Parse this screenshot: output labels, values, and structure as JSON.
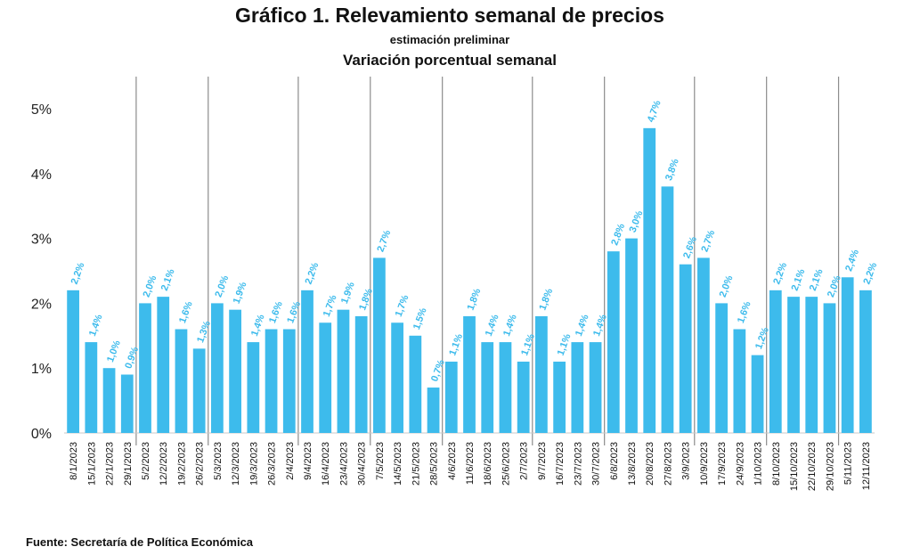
{
  "title": "Gráfico 1. Relevamiento semanal de precios",
  "subtitle": "estimación preliminar",
  "subtitle2": "Variación porcentual semanal",
  "source": "Fuente: Secretaría de Política Económica",
  "colors": {
    "bar": "#3dbbec",
    "label": "#3dbbec",
    "separator": "#8c8c8c",
    "axis": "#c8c8c8"
  },
  "chart_data": {
    "type": "bar",
    "title": "Variación porcentual semanal",
    "xlabel": "",
    "ylabel": "",
    "ylim": [
      0,
      5
    ],
    "yticks": [
      "0%",
      "1%",
      "2%",
      "3%",
      "4%",
      "5%"
    ],
    "grid": false,
    "legend": "none",
    "categories": [
      "8/1/2023",
      "15/1/2023",
      "22/1/2023",
      "29/1/2023",
      "5/2/2023",
      "12/2/2023",
      "19/2/2023",
      "26/2/2023",
      "5/3/2023",
      "12/3/2023",
      "19/3/2023",
      "26/3/2023",
      "2/4/2023",
      "9/4/2023",
      "16/4/2023",
      "23/4/2023",
      "30/4/2023",
      "7/5/2023",
      "14/5/2023",
      "21/5/2023",
      "28/5/2023",
      "4/6/2023",
      "11/6/2023",
      "18/6/2023",
      "25/6/2023",
      "2/7/2023",
      "9/7/2023",
      "16/7/2023",
      "23/7/2023",
      "30/7/2023",
      "6/8/2023",
      "13/8/2023",
      "20/8/2023",
      "27/8/2023",
      "3/9/2023",
      "10/9/2023",
      "17/9/2023",
      "24/9/2023",
      "1/10/2023",
      "8/10/2023",
      "15/10/2023",
      "22/10/2023",
      "29/10/2023",
      "5/11/2023",
      "12/11/2023"
    ],
    "values": [
      2.2,
      1.4,
      1.0,
      0.9,
      2.0,
      2.1,
      1.6,
      1.3,
      2.0,
      1.9,
      1.4,
      1.6,
      1.6,
      2.2,
      1.7,
      1.9,
      1.8,
      2.7,
      1.7,
      1.5,
      0.7,
      1.1,
      1.8,
      1.4,
      1.4,
      1.1,
      1.8,
      1.1,
      1.4,
      1.4,
      2.8,
      3.0,
      4.7,
      3.8,
      2.6,
      2.7,
      2.0,
      1.6,
      1.2,
      2.2,
      2.1,
      2.1,
      2.0,
      2.4,
      2.2
    ],
    "data_labels": [
      "2,2%",
      "1,4%",
      "1,0%",
      "0,9%",
      "2,0%",
      "2,1%",
      "1,6%",
      "1,3%",
      "2,0%",
      "1,9%",
      "1,4%",
      "1,6%",
      "1,6%",
      "2,2%",
      "1,7%",
      "1,9%",
      "1,8%",
      "2,7%",
      "1,7%",
      "1,5%",
      "0,7%",
      "1,1%",
      "1,8%",
      "1,4%",
      "1,4%",
      "1,1%",
      "1,8%",
      "1,1%",
      "1,4%",
      "1,4%",
      "2,8%",
      "3,0%",
      "4,7%",
      "3,8%",
      "2,6%",
      "2,7%",
      "2,0%",
      "1,6%",
      "1,2%",
      "2,2%",
      "2,1%",
      "2,1%",
      "2,0%",
      "2,4%",
      "2,2%"
    ],
    "month_separators_after": [
      "29/1/2023",
      "26/2/2023",
      "2/4/2023",
      "30/4/2023",
      "28/5/2023",
      "2/7/2023",
      "30/7/2023",
      "3/9/2023",
      "1/10/2023",
      "29/10/2023"
    ]
  }
}
